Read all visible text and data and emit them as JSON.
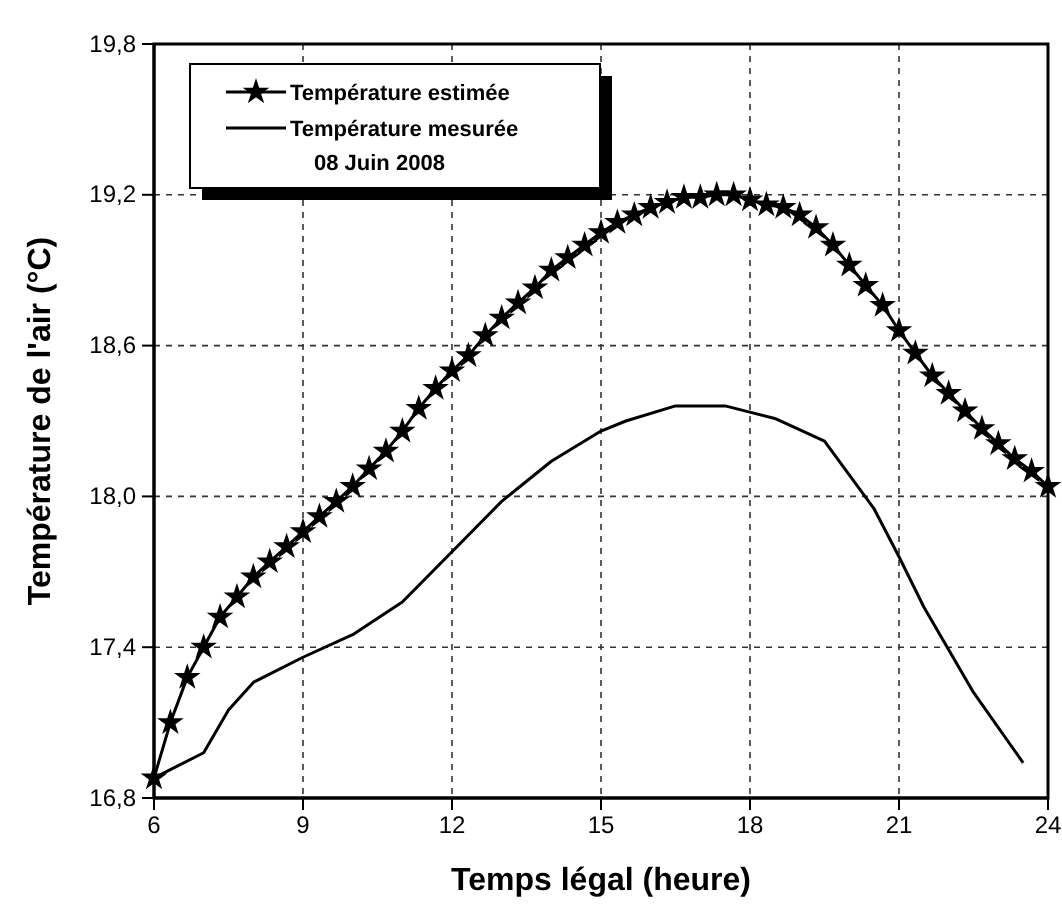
{
  "chart_data": {
    "type": "line",
    "xlabel": "Temps légal  (heure)",
    "ylabel": "Température de l'air (°C)",
    "xlim": [
      6,
      24
    ],
    "xticks": [
      6,
      9,
      12,
      15,
      18,
      21,
      24
    ],
    "ylim": [
      16.8,
      19.8
    ],
    "yticks": [
      {
        "value": 16.8,
        "label": "16,8"
      },
      {
        "value": 17.4,
        "label": "17,4"
      },
      {
        "value": 18.0,
        "label": "18,0"
      },
      {
        "value": 18.6,
        "label": "18,6"
      },
      {
        "value": 19.2,
        "label": "19,2"
      },
      {
        "value": 19.8,
        "label": "19,8"
      }
    ],
    "grid": true,
    "legend": "top left",
    "annotations": [
      "08 Juin 2008"
    ],
    "series": [
      {
        "name": "Température  estimée",
        "color": "#000000",
        "marker": "star",
        "x": [
          6,
          6.33,
          6.67,
          7,
          7.33,
          7.67,
          8,
          8.33,
          8.67,
          9,
          9.33,
          9.67,
          10,
          10.33,
          10.67,
          11,
          11.33,
          11.67,
          12,
          12.33,
          12.67,
          13,
          13.33,
          13.67,
          14,
          14.33,
          14.67,
          15,
          15.33,
          15.67,
          16,
          16.33,
          16.67,
          17,
          17.33,
          17.67,
          18,
          18.33,
          18.67,
          19,
          19.33,
          19.67,
          20,
          20.33,
          20.67,
          21,
          21.33,
          21.67,
          22,
          22.33,
          22.67,
          23,
          23.33,
          23.67,
          24
        ],
        "values": [
          16.88,
          17.1,
          17.28,
          17.4,
          17.52,
          17.6,
          17.68,
          17.74,
          17.8,
          17.86,
          17.92,
          17.98,
          18.04,
          18.11,
          18.18,
          18.26,
          18.35,
          18.43,
          18.5,
          18.56,
          18.64,
          18.71,
          18.77,
          18.83,
          18.9,
          18.95,
          19.0,
          19.05,
          19.09,
          19.12,
          19.15,
          19.17,
          19.19,
          19.19,
          19.2,
          19.2,
          19.18,
          19.16,
          19.15,
          19.12,
          19.07,
          19.0,
          18.92,
          18.84,
          18.76,
          18.66,
          18.57,
          18.48,
          18.41,
          18.34,
          18.27,
          18.21,
          18.15,
          18.1,
          18.04
        ]
      },
      {
        "name": "Température  mesurée",
        "color": "#000000",
        "marker": "none",
        "x": [
          6,
          7,
          7.5,
          8,
          9,
          10,
          11,
          12,
          13,
          14,
          15,
          15.5,
          16.5,
          17.5,
          18.5,
          19.5,
          20.5,
          21,
          21.5,
          22.5,
          23.5
        ],
        "values": [
          16.88,
          16.98,
          17.15,
          17.26,
          17.36,
          17.45,
          17.58,
          17.78,
          17.98,
          18.14,
          18.26,
          18.3,
          18.36,
          18.36,
          18.31,
          18.22,
          17.95,
          17.76,
          17.56,
          17.22,
          16.94
        ]
      }
    ]
  }
}
